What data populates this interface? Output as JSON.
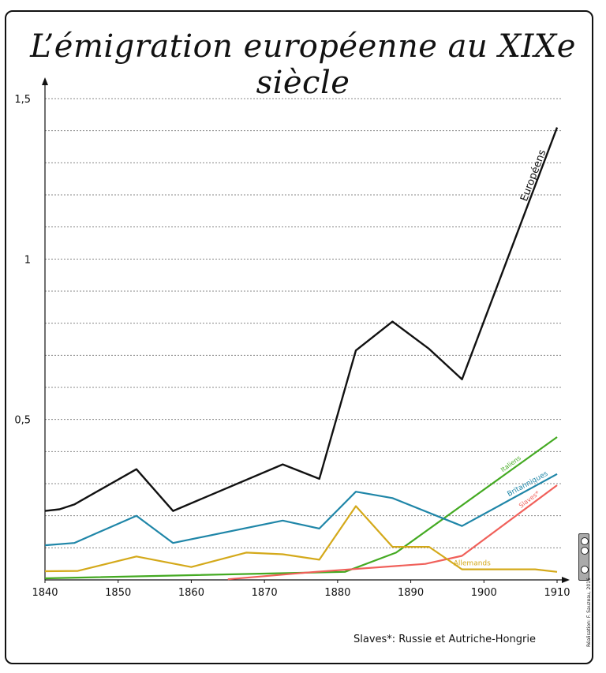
{
  "title": "L’émigration européenne au XIXe siècle",
  "note": "Slaves*: Russie et Autriche-Hongrie",
  "credit": "Réalisation: F. Sauzeau, 2016",
  "colors": {
    "europeens": "#111111",
    "italiens": "#44aa22",
    "britanniques": "#1f86a8",
    "slaves": "#f0605a",
    "allemands": "#d4a91a",
    "grid": "#888888"
  },
  "chart_data": {
    "type": "line",
    "title": "L’émigration européenne au XIXe siècle",
    "xlabel": "",
    "ylabel": "",
    "xlim": [
      1840,
      1910
    ],
    "ylim": [
      0,
      1.5
    ],
    "xticks": [
      "1840",
      "1850",
      "1860",
      "1870",
      "1880",
      "1890",
      "1900",
      "1910"
    ],
    "yticks": [
      {
        "value": 0.5,
        "label": "0,5"
      },
      {
        "value": 1,
        "label": "1"
      },
      {
        "value": 1.5,
        "label": "1,5"
      }
    ],
    "grid": true,
    "series": [
      {
        "name": "Européens",
        "color_key": "europeens",
        "x": [
          1840,
          1842,
          1844,
          1852.5,
          1857.5,
          1872.5,
          1877.5,
          1882.5,
          1887.5,
          1892.5,
          1897,
          1910
        ],
        "y": [
          0.215,
          0.22,
          0.235,
          0.345,
          0.215,
          0.36,
          0.315,
          0.715,
          0.805,
          0.72,
          0.625,
          1.41
        ]
      },
      {
        "name": "Italiens",
        "color_key": "italiens",
        "x": [
          1840,
          1881,
          1888,
          1910
        ],
        "y": [
          0.005,
          0.025,
          0.085,
          0.445
        ]
      },
      {
        "name": "Britanniques",
        "color_key": "britanniques",
        "x": [
          1840,
          1844,
          1852.5,
          1857.5,
          1872.5,
          1877.5,
          1882.5,
          1887.5,
          1897,
          1910
        ],
        "y": [
          0.108,
          0.115,
          0.2,
          0.115,
          0.185,
          0.16,
          0.275,
          0.255,
          0.168,
          0.33
        ]
      },
      {
        "name": "Slaves*",
        "color_key": "slaves",
        "x": [
          1865,
          1877,
          1892,
          1897,
          1910
        ],
        "y": [
          0.002,
          0.025,
          0.05,
          0.075,
          0.295
        ]
      },
      {
        "name": "Allemands",
        "color_key": "allemands",
        "x": [
          1840,
          1844.5,
          1852.5,
          1860,
          1867.5,
          1872.5,
          1877.5,
          1882.5,
          1887.5,
          1892.5,
          1897,
          1900,
          1907,
          1910
        ],
        "y": [
          0.027,
          0.028,
          0.073,
          0.04,
          0.085,
          0.08,
          0.063,
          0.23,
          0.103,
          0.103,
          0.033,
          0.033,
          0.033,
          0.025
        ]
      }
    ],
    "labels": [
      {
        "series": "Européens",
        "text": "Européens"
      },
      {
        "series": "Italiens",
        "text": "Italiens"
      },
      {
        "series": "Britanniques",
        "text": "Britanniques"
      },
      {
        "series": "Slaves*",
        "text": "Slaves*"
      },
      {
        "series": "Allemands",
        "text": "Allemands"
      }
    ]
  }
}
